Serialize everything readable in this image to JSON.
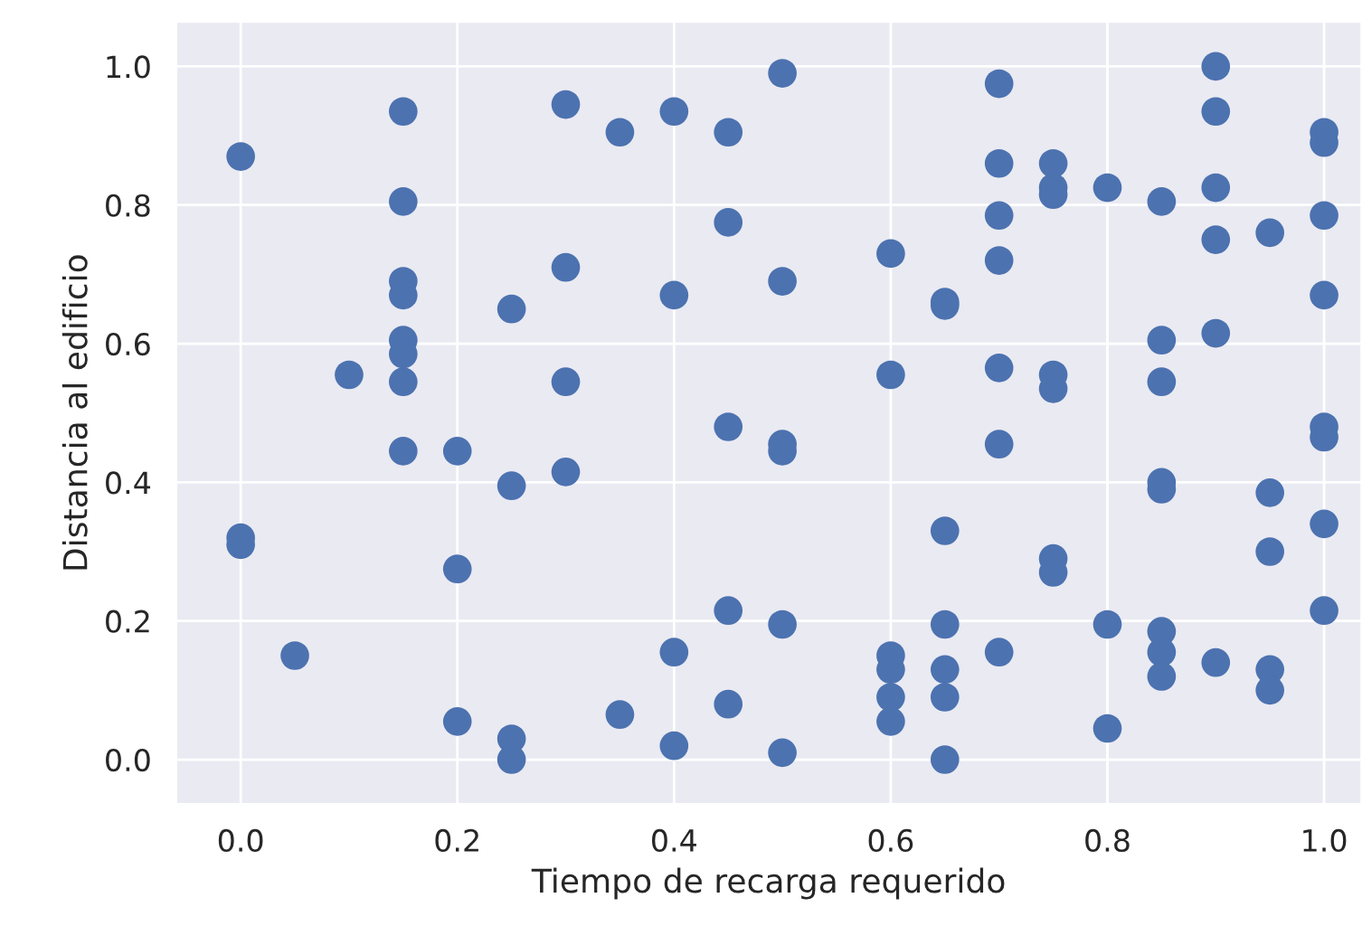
{
  "chart_data": {
    "type": "scatter",
    "xlabel": "Tiempo de recarga requerido",
    "ylabel": "Distancia al edificio",
    "x": [
      0.0,
      0.0,
      0.0,
      0.05,
      0.1,
      0.15,
      0.15,
      0.15,
      0.15,
      0.15,
      0.15,
      0.15,
      0.15,
      0.2,
      0.2,
      0.2,
      0.25,
      0.25,
      0.25,
      0.25,
      0.3,
      0.3,
      0.3,
      0.3,
      0.35,
      0.35,
      0.4,
      0.4,
      0.4,
      0.4,
      0.45,
      0.45,
      0.45,
      0.45,
      0.45,
      0.5,
      0.5,
      0.5,
      0.5,
      0.5,
      0.5,
      0.6,
      0.6,
      0.6,
      0.6,
      0.6,
      0.6,
      0.65,
      0.65,
      0.65,
      0.65,
      0.65,
      0.65,
      0.65,
      0.7,
      0.7,
      0.7,
      0.7,
      0.7,
      0.7,
      0.7,
      0.75,
      0.75,
      0.75,
      0.75,
      0.75,
      0.75,
      0.75,
      0.8,
      0.8,
      0.8,
      0.85,
      0.85,
      0.85,
      0.85,
      0.85,
      0.85,
      0.85,
      0.85,
      0.9,
      0.9,
      0.9,
      0.9,
      0.9,
      0.9,
      0.95,
      0.95,
      0.95,
      0.95,
      0.95,
      1.0,
      1.0,
      1.0,
      1.0,
      1.0,
      1.0,
      1.0,
      1.0
    ],
    "values": [
      0.87,
      0.32,
      0.31,
      0.15,
      0.555,
      0.935,
      0.805,
      0.69,
      0.67,
      0.605,
      0.585,
      0.545,
      0.445,
      0.445,
      0.275,
      0.055,
      0.65,
      0.395,
      0.03,
      0.0,
      0.945,
      0.71,
      0.545,
      0.415,
      0.905,
      0.065,
      0.935,
      0.67,
      0.155,
      0.02,
      0.905,
      0.775,
      0.48,
      0.215,
      0.08,
      0.99,
      0.69,
      0.455,
      0.445,
      0.195,
      0.01,
      0.73,
      0.555,
      0.15,
      0.13,
      0.09,
      0.055,
      0.66,
      0.655,
      0.33,
      0.195,
      0.13,
      0.09,
      0.0,
      0.975,
      0.86,
      0.785,
      0.72,
      0.565,
      0.455,
      0.155,
      0.86,
      0.825,
      0.815,
      0.555,
      0.535,
      0.29,
      0.27,
      0.825,
      0.195,
      0.045,
      0.805,
      0.605,
      0.545,
      0.4,
      0.39,
      0.185,
      0.155,
      0.12,
      1.0,
      0.935,
      0.825,
      0.75,
      0.615,
      0.14,
      0.76,
      0.385,
      0.3,
      0.13,
      0.1,
      0.905,
      0.89,
      0.785,
      0.67,
      0.48,
      0.465,
      0.34,
      0.215
    ],
    "color": "#4c72b0",
    "marker": "circle",
    "xlim": [
      -0.06,
      1.035
    ],
    "ylim": [
      -0.065,
      1.065
    ],
    "xticks": [
      {
        "value": 0.0,
        "label": "0.0"
      },
      {
        "value": 0.2,
        "label": "0.2"
      },
      {
        "value": 0.4,
        "label": "0.4"
      },
      {
        "value": 0.6,
        "label": "0.6"
      },
      {
        "value": 0.8,
        "label": "0.8"
      },
      {
        "value": 1.0,
        "label": "1.0"
      }
    ],
    "yticks": [
      {
        "value": 0.0,
        "label": "0.0"
      },
      {
        "value": 0.2,
        "label": "0.2"
      },
      {
        "value": 0.4,
        "label": "0.4"
      },
      {
        "value": 0.6,
        "label": "0.6"
      },
      {
        "value": 0.8,
        "label": "0.8"
      },
      {
        "value": 1.0,
        "label": "1.0"
      }
    ],
    "grid": true
  }
}
